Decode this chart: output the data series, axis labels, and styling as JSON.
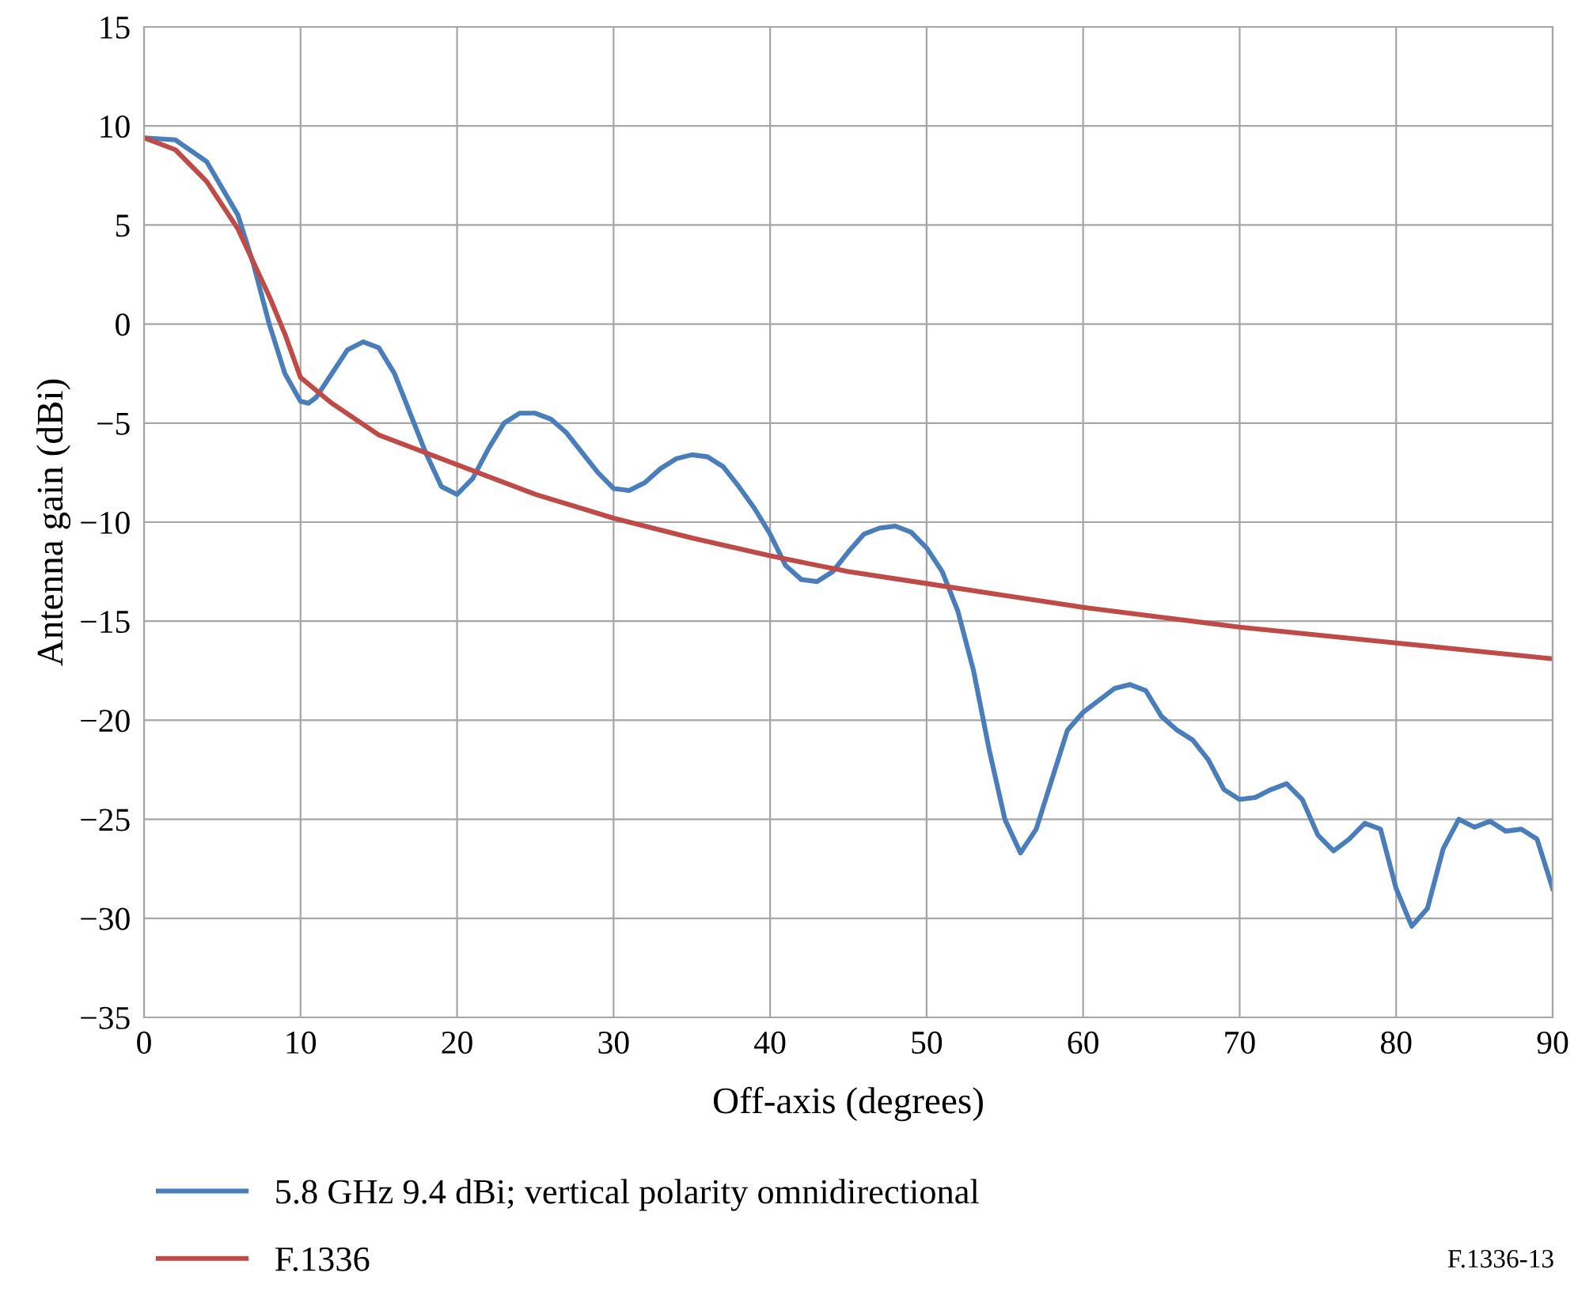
{
  "chart_data": {
    "type": "line",
    "xlabel": "Off-axis (degrees)",
    "ylabel": "Antenna gain (dBi)",
    "xlim": [
      0,
      90
    ],
    "xticks": [
      0,
      10,
      20,
      30,
      40,
      50,
      60,
      70,
      80,
      90
    ],
    "ylim": [
      -35,
      15
    ],
    "yticks": [
      -35,
      -30,
      -25,
      -20,
      -15,
      -10,
      -5,
      0,
      5,
      10,
      15
    ],
    "grid": true,
    "legend": "bottom",
    "marker": "none",
    "line_style": "solid",
    "series": [
      {
        "name": "5.8 GHz 9.4 dBi; vertical polarity omnidirectional",
        "color": "#4a7ebb",
        "x": [
          0,
          2,
          4,
          6,
          7,
          8,
          9,
          10,
          10.5,
          11,
          12,
          13,
          14,
          15,
          16,
          17,
          18,
          19,
          20,
          21,
          22,
          23,
          24,
          25,
          26,
          27,
          28,
          29,
          30,
          31,
          32,
          33,
          34,
          35,
          36,
          37,
          38,
          39,
          40,
          41,
          42,
          43,
          44,
          45,
          46,
          47,
          48,
          49,
          50,
          51,
          52,
          53,
          54,
          55,
          56,
          57,
          58,
          59,
          60,
          61,
          62,
          63,
          64,
          65,
          66,
          67,
          68,
          69,
          70,
          71,
          72,
          73,
          74,
          75,
          76,
          77,
          78,
          79,
          80,
          81,
          82,
          83,
          84,
          85,
          86,
          87,
          88,
          89,
          90
        ],
        "values": [
          9.4,
          9.3,
          8.2,
          5.5,
          3,
          0,
          -2.5,
          -3.9,
          -4,
          -3.7,
          -2.5,
          -1.3,
          -0.9,
          -1.2,
          -2.5,
          -4.5,
          -6.5,
          -8.2,
          -8.6,
          -7.8,
          -6.3,
          -5,
          -4.5,
          -4.5,
          -4.8,
          -5.5,
          -6.5,
          -7.5,
          -8.3,
          -8.4,
          -8,
          -7.3,
          -6.8,
          -6.6,
          -6.7,
          -7.2,
          -8.2,
          -9.3,
          -10.6,
          -12.2,
          -12.9,
          -13,
          -12.5,
          -11.5,
          -10.6,
          -10.3,
          -10.2,
          -10.5,
          -11.3,
          -12.5,
          -14.5,
          -17.5,
          -21.5,
          -25,
          -26.7,
          -25.5,
          -23,
          -20.5,
          -19.6,
          -19,
          -18.4,
          -18.2,
          -18.5,
          -19.8,
          -20.5,
          -21,
          -22,
          -23.5,
          -24,
          -23.9,
          -23.5,
          -23.2,
          -24,
          -25.8,
          -26.6,
          -26,
          -25.2,
          -25.5,
          -28.5,
          -30.4,
          -29.5,
          -26.5,
          -25,
          -25.4,
          -25.1,
          -25.6,
          -25.5,
          -26,
          -28.5
        ]
      },
      {
        "name": "F.1336",
        "color": "#be4b48",
        "x": [
          0,
          2,
          4,
          6,
          8,
          9,
          10,
          12,
          15,
          20,
          25,
          30,
          35,
          40,
          45,
          50,
          55,
          60,
          65,
          70,
          75,
          80,
          85,
          90
        ],
        "values": [
          9.4,
          8.8,
          7.2,
          4.8,
          1.4,
          -0.5,
          -2.7,
          -4,
          -5.6,
          -7.1,
          -8.6,
          -9.8,
          -10.8,
          -11.7,
          -12.5,
          -13.1,
          -13.7,
          -14.3,
          -14.8,
          -15.3,
          -15.7,
          -16.1,
          -16.5,
          -16.9
        ]
      }
    ],
    "annotations": [
      "F.1336-13"
    ]
  }
}
